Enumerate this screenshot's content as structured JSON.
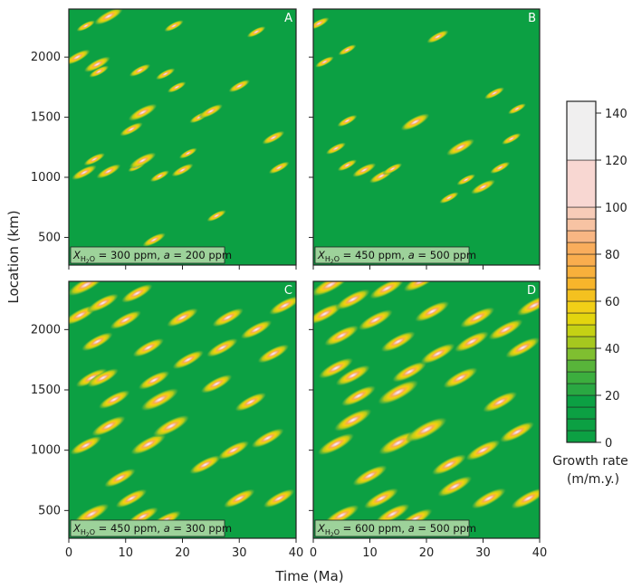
{
  "chart_data": {
    "type": "heatmap",
    "ylabel": "Location (km)",
    "xlabel": "Time (Ma)",
    "xlim": [
      0,
      40
    ],
    "ylim": [
      270,
      2400
    ],
    "xticks": [
      0,
      10,
      20,
      30,
      40
    ],
    "yticks": [
      500,
      1000,
      1500,
      2000
    ],
    "background_color": "#0ca043",
    "panels": [
      {
        "letter": "A",
        "caption": {
          "pre": "X",
          "sub": "H",
          "sub2": "2",
          "sub3": "O",
          "mid": " = 300 ppm, ",
          "italic": "a",
          "post": " = 200 ppm"
        },
        "blobs": [
          [
            1.5,
            2000,
            1,
            30,
            4.1
          ],
          [
            2.7,
            1040,
            1,
            30,
            4.0
          ],
          [
            3,
            2260,
            1,
            35,
            3.0
          ],
          [
            4.5,
            1150,
            1,
            30,
            3.4
          ],
          [
            5.3,
            1880,
            1,
            30,
            3.2
          ],
          [
            5,
            1940,
            2,
            40,
            4.2
          ],
          [
            7,
            1050,
            1,
            30,
            3.9
          ],
          [
            7,
            2340,
            1.5,
            30,
            4.6
          ],
          [
            11,
            1400,
            1,
            35,
            3.7
          ],
          [
            12,
            1090,
            1,
            30,
            2.9
          ],
          [
            12.5,
            1890,
            1,
            30,
            3.4
          ],
          [
            13,
            1540,
            3,
            30,
            4.6
          ],
          [
            13,
            1140,
            1,
            50,
            4.3
          ],
          [
            15,
            480,
            1,
            40,
            3.7
          ],
          [
            16,
            1010,
            1,
            30,
            3.1
          ],
          [
            17,
            1860,
            1,
            30,
            3.1
          ],
          [
            18.5,
            2260,
            1,
            30,
            3.1
          ],
          [
            19,
            1750,
            1,
            30,
            3.0
          ],
          [
            20,
            1060,
            1,
            30,
            3.5
          ],
          [
            21,
            1200,
            1,
            30,
            2.9
          ],
          [
            23,
            1500,
            1,
            40,
            3.2
          ],
          [
            25,
            1550,
            1,
            30,
            3.8
          ],
          [
            26,
            680,
            1,
            30,
            3.1
          ],
          [
            30,
            1760,
            1,
            30,
            3.4
          ],
          [
            33,
            2210,
            1,
            30,
            3.0
          ],
          [
            36,
            1330,
            1,
            30,
            3.6
          ],
          [
            37,
            1080,
            1,
            30,
            3.3
          ]
        ]
      },
      {
        "letter": "B",
        "caption": {
          "pre": "X",
          "sub": "H",
          "sub2": "2",
          "sub3": "O",
          "mid": " = 450 ppm, ",
          "italic": "a",
          "post": " = 500 ppm"
        },
        "blobs": [
          [
            1,
            2280,
            1,
            30,
            3.3
          ],
          [
            2,
            1960,
            1,
            30,
            3.0
          ],
          [
            4,
            1240,
            1,
            30,
            3.2
          ],
          [
            6,
            1470,
            1,
            30,
            3.2
          ],
          [
            6,
            1100,
            1,
            30,
            3.1
          ],
          [
            6,
            2060,
            1,
            30,
            2.9
          ],
          [
            9,
            1060,
            2,
            30,
            3.8
          ],
          [
            12,
            1010,
            1,
            30,
            3.8
          ],
          [
            14,
            1070,
            2,
            30,
            3.1
          ],
          [
            18,
            1460,
            1.5,
            40,
            4.6
          ],
          [
            22,
            2170,
            1,
            30,
            3.5
          ],
          [
            24,
            830,
            1,
            30,
            3.1
          ],
          [
            26,
            1250,
            1,
            50,
            4.5
          ],
          [
            27,
            980,
            1,
            30,
            3.0
          ],
          [
            30,
            920,
            1.5,
            30,
            3.9
          ],
          [
            32,
            1700,
            1,
            30,
            3.2
          ],
          [
            33,
            1080,
            1,
            30,
            3.2
          ],
          [
            35,
            1320,
            1,
            30,
            3.1
          ],
          [
            36,
            1570,
            1,
            30,
            2.9
          ]
        ]
      },
      {
        "letter": "C",
        "caption": {
          "pre": "X",
          "sub": "H",
          "sub2": "2",
          "sub3": "O",
          "mid": " = 450 ppm, ",
          "italic": "a",
          "post": " = 300 ppm"
        },
        "blobs": [
          [
            2,
            2120,
            2,
            40,
            5.2
          ],
          [
            3,
            2370,
            2,
            40,
            5.8
          ],
          [
            4,
            1600,
            2,
            40,
            5.0
          ],
          [
            5,
            1900,
            2,
            40,
            5.0
          ],
          [
            3,
            1040,
            2,
            40,
            5.0
          ],
          [
            4,
            470,
            2,
            40,
            5.6
          ],
          [
            6,
            2220,
            2,
            40,
            5.0
          ],
          [
            8,
            1420,
            2,
            40,
            5.0
          ],
          [
            7,
            1200,
            2,
            40,
            5.4
          ],
          [
            10,
            2080,
            2,
            40,
            5.0
          ],
          [
            12,
            2300,
            2,
            40,
            5.0
          ],
          [
            9,
            770,
            2,
            40,
            5.0
          ],
          [
            14,
            1850,
            2,
            40,
            5.0
          ],
          [
            14,
            1050,
            2,
            40,
            5.6
          ],
          [
            15,
            1580,
            2,
            40,
            5.0
          ],
          [
            16,
            1420,
            3,
            60,
            6.0
          ],
          [
            17,
            420,
            2,
            40,
            5.0
          ],
          [
            18,
            1200,
            2,
            40,
            5.8
          ],
          [
            20,
            2100,
            2,
            40,
            5.0
          ],
          [
            21,
            1750,
            2,
            40,
            5.0
          ],
          [
            24,
            880,
            2,
            40,
            5.0
          ],
          [
            26,
            1550,
            2,
            40,
            5.0
          ],
          [
            27,
            1850,
            2,
            40,
            5.0
          ],
          [
            28,
            2100,
            2,
            40,
            5.0
          ],
          [
            29,
            1000,
            2,
            40,
            5.0
          ],
          [
            32,
            1400,
            2,
            40,
            5.0
          ],
          [
            33,
            2000,
            2,
            40,
            5.0
          ],
          [
            35,
            1100,
            2,
            40,
            5.2
          ],
          [
            37,
            600,
            2,
            40,
            5.0
          ],
          [
            38,
            2200,
            2,
            40,
            5.0
          ],
          [
            30,
            600,
            2,
            40,
            5.0
          ],
          [
            11,
            600,
            2,
            40,
            5.0
          ],
          [
            13,
            450,
            2,
            40,
            5.0
          ],
          [
            6,
            1600,
            2,
            40,
            5.0
          ],
          [
            36,
            1800,
            2,
            40,
            5.0
          ]
        ]
      },
      {
        "letter": "D",
        "caption": {
          "pre": "X",
          "sub": "H",
          "sub2": "2",
          "sub3": "O",
          "mid": " = 600 ppm, ",
          "italic": "a",
          "post": " = 500 ppm"
        },
        "blobs": [
          [
            2,
            2130,
            2,
            40,
            5.5
          ],
          [
            3,
            2370,
            2,
            40,
            6.0
          ],
          [
            4,
            1680,
            2,
            40,
            5.5
          ],
          [
            5,
            1950,
            2,
            40,
            5.5
          ],
          [
            4,
            1050,
            2,
            40,
            5.8
          ],
          [
            5,
            460,
            2,
            40,
            5.6
          ],
          [
            7,
            2250,
            2,
            40,
            5.5
          ],
          [
            8,
            1450,
            2,
            40,
            5.5
          ],
          [
            7,
            1250,
            2,
            40,
            6.0
          ],
          [
            11,
            2080,
            2,
            40,
            5.5
          ],
          [
            13,
            2340,
            2,
            40,
            5.5
          ],
          [
            10,
            790,
            2,
            40,
            5.5
          ],
          [
            15,
            1900,
            2,
            40,
            5.5
          ],
          [
            15,
            1060,
            2,
            40,
            6.2
          ],
          [
            15,
            1480,
            3,
            60,
            6.5
          ],
          [
            17,
            1650,
            2,
            40,
            5.5
          ],
          [
            18,
            430,
            2,
            40,
            5.5
          ],
          [
            20,
            1170,
            3,
            60,
            6.5
          ],
          [
            21,
            2150,
            2,
            40,
            5.5
          ],
          [
            22,
            1800,
            2,
            40,
            5.5
          ],
          [
            24,
            880,
            2,
            40,
            5.5
          ],
          [
            26,
            1600,
            2,
            40,
            5.5
          ],
          [
            28,
            1900,
            2,
            40,
            5.5
          ],
          [
            29,
            2100,
            2,
            40,
            5.5
          ],
          [
            30,
            1000,
            2,
            40,
            5.5
          ],
          [
            33,
            1400,
            2,
            40,
            5.5
          ],
          [
            34,
            2000,
            2,
            40,
            5.5
          ],
          [
            36,
            1150,
            2,
            40,
            5.5
          ],
          [
            38,
            600,
            2,
            40,
            5.5
          ],
          [
            39,
            2200,
            2,
            40,
            5.5
          ],
          [
            31,
            600,
            2,
            40,
            5.5
          ],
          [
            12,
            600,
            2,
            40,
            5.5
          ],
          [
            14,
            470,
            2,
            40,
            5.5
          ],
          [
            7,
            1620,
            2,
            40,
            5.5
          ],
          [
            37,
            1850,
            2,
            40,
            5.5
          ],
          [
            19,
            2400,
            2,
            40,
            5.5
          ],
          [
            25,
            700,
            2,
            40,
            5.5
          ]
        ]
      }
    ],
    "colorbar": {
      "label_line1": "Growth rate",
      "label_line2": "(m/m.y.)",
      "ticks": [
        0,
        20,
        40,
        60,
        80,
        100,
        120,
        140
      ],
      "min": 0,
      "max": 145,
      "bins": [
        [
          0,
          5,
          "#0ca043"
        ],
        [
          5,
          10,
          "#0ca043"
        ],
        [
          10,
          15,
          "#0ca043"
        ],
        [
          15,
          20,
          "#0ca043"
        ],
        [
          20,
          25,
          "#2aa842"
        ],
        [
          25,
          30,
          "#3cae3e"
        ],
        [
          30,
          35,
          "#58b43a"
        ],
        [
          35,
          40,
          "#7fbf30"
        ],
        [
          40,
          45,
          "#a6c81f"
        ],
        [
          45,
          50,
          "#c5d114"
        ],
        [
          50,
          55,
          "#e3d50e"
        ],
        [
          55,
          60,
          "#f1cf17"
        ],
        [
          60,
          65,
          "#f4c11f"
        ],
        [
          65,
          70,
          "#f7b52b"
        ],
        [
          70,
          75,
          "#f8b03b"
        ],
        [
          75,
          80,
          "#f9ad4e"
        ],
        [
          80,
          85,
          "#f9ad5c"
        ],
        [
          85,
          90,
          "#f8b683"
        ],
        [
          90,
          95,
          "#f7c3a3"
        ],
        [
          95,
          100,
          "#f7ccb8"
        ],
        [
          100,
          120,
          "#f8d7d2"
        ],
        [
          120,
          145,
          "#f0efef"
        ]
      ]
    }
  }
}
